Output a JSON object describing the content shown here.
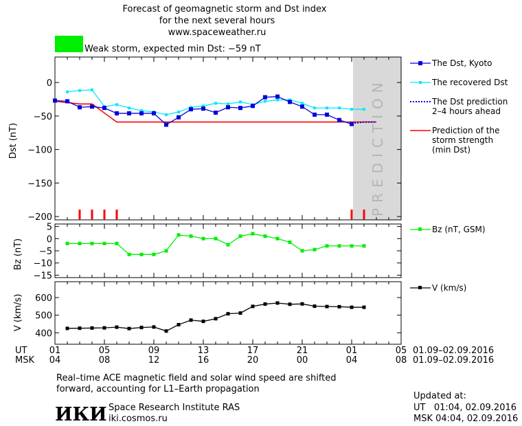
{
  "header": {
    "title_line1": "Forecast of geomagnetic storm and Dst index",
    "title_line2": "for the next several hours",
    "site": "www.spaceweather.ru",
    "storm_text": "Weak storm, expected min Dst: −59 nT",
    "storm_color": "#00ee00"
  },
  "prediction_label": "PREDICTION",
  "time_axis": {
    "ut_label": "UT",
    "msk_label": "MSK",
    "ut_ticks": [
      "01",
      "05",
      "09",
      "13",
      "17",
      "21",
      "01",
      "05"
    ],
    "msk_ticks": [
      "04",
      "08",
      "12",
      "16",
      "20",
      "00",
      "04",
      "08"
    ],
    "ut_range": "01.09–02.09.2016",
    "msk_range": "01.09–02.09.2016"
  },
  "footer": {
    "note_line1": "Real–time ACE magnetic field and solar wind speed are shifted",
    "note_line2": "forward, accounting for L1–Earth propagation",
    "logo_text": "ИКИ",
    "institute": "Space Research Institute RAS",
    "institute_url": "iki.cosmos.ru",
    "updated_label": "Updated at:",
    "updated_ut": "UT   01:04, 02.09.2016",
    "updated_msk": "MSK 04:04, 02.09.2016"
  },
  "colors": {
    "dst": "#0000dd",
    "recovered": "#00e8ff",
    "prediction_dotted": "#0000dd",
    "strength": "#ff0000",
    "bz": "#00ee00",
    "v": "#000000",
    "prediction_band": "#d9d9d9"
  },
  "chart_data": [
    {
      "type": "line",
      "title": "Forecast of geomagnetic storm and Dst index",
      "xlabel": "UT",
      "ylabel": "Dst (nT)",
      "xlim": [
        0,
        28
      ],
      "ylim": [
        -205,
        38
      ],
      "yticks": [
        0,
        -50,
        -100,
        -150,
        -200
      ],
      "grid": false,
      "legend_position": "right",
      "prediction_start": 24,
      "storm_markers": [
        2,
        3,
        4,
        5,
        24,
        25
      ],
      "series": [
        {
          "name": "The Dst, Kyoto",
          "x": [
            0,
            1,
            2,
            3,
            4,
            5,
            6,
            7,
            8,
            9,
            10,
            11,
            12,
            13,
            14,
            15,
            16,
            17,
            18,
            19,
            20,
            21,
            22,
            23,
            24
          ],
          "values": [
            -27,
            -28,
            -37,
            -36,
            -38,
            -46,
            -46,
            -46,
            -46,
            -63,
            -52,
            -40,
            -39,
            -45,
            -37,
            -38,
            -35,
            -22,
            -21,
            -29,
            -36,
            -48,
            -48,
            -56,
            -62
          ]
        },
        {
          "name": "The recovered Dst",
          "x": [
            1,
            2,
            3,
            4,
            5,
            6,
            7,
            8,
            9,
            10,
            11,
            12,
            13,
            14,
            15,
            16,
            17,
            18,
            19,
            20,
            21,
            22,
            23,
            24,
            25
          ],
          "values": [
            -14,
            -12,
            -11,
            -36,
            -33,
            -38,
            -42,
            -44,
            -48,
            -44,
            -37,
            -35,
            -31,
            -32,
            -29,
            -33,
            -28,
            -26,
            -26,
            -31,
            -38,
            -38,
            -38,
            -40,
            -40
          ]
        },
        {
          "name": "The Dst prediction 2–4 hours ahead",
          "x": [
            24,
            25,
            26
          ],
          "values": [
            -61,
            -59,
            -59
          ]
        },
        {
          "name": "Prediction of the storm strength (min Dst)",
          "x": [
            0,
            2,
            3,
            5,
            26
          ],
          "values": [
            -28,
            -32,
            -32,
            -59,
            -59
          ]
        }
      ]
    },
    {
      "type": "line",
      "xlabel": "UT",
      "ylabel": "Bz (nT)",
      "xlim": [
        0,
        28
      ],
      "ylim": [
        -16,
        6
      ],
      "yticks": [
        5,
        0,
        -5,
        -10,
        -15
      ],
      "grid": false,
      "series": [
        {
          "name": "Bz (nT, GSM)",
          "x": [
            1,
            2,
            3,
            4,
            5,
            6,
            7,
            8,
            9,
            10,
            11,
            12,
            13,
            14,
            15,
            16,
            17,
            18,
            19,
            20,
            21,
            22,
            23,
            24,
            25
          ],
          "values": [
            -2,
            -2,
            -2,
            -2,
            -2,
            -6.5,
            -6.5,
            -6.5,
            -5,
            1.5,
            1,
            0,
            0,
            -2.5,
            1,
            2,
            1,
            0,
            -1.5,
            -5,
            -4.5,
            -3,
            -3,
            -3,
            -3
          ]
        }
      ]
    },
    {
      "type": "line",
      "xlabel": "UT",
      "ylabel": "V (km/s)",
      "xlim": [
        0,
        28
      ],
      "ylim": [
        335,
        690
      ],
      "yticks": [
        600,
        500,
        400
      ],
      "grid": false,
      "series": [
        {
          "name": "V (km/s)",
          "x": [
            1,
            2,
            3,
            4,
            5,
            6,
            7,
            8,
            9,
            10,
            11,
            12,
            13,
            14,
            15,
            16,
            17,
            18,
            19,
            20,
            21,
            22,
            23,
            24,
            25
          ],
          "values": [
            425,
            426,
            427,
            428,
            432,
            424,
            430,
            433,
            410,
            446,
            472,
            465,
            480,
            508,
            512,
            550,
            563,
            569,
            562,
            564,
            551,
            549,
            548,
            545,
            545
          ]
        }
      ]
    }
  ]
}
